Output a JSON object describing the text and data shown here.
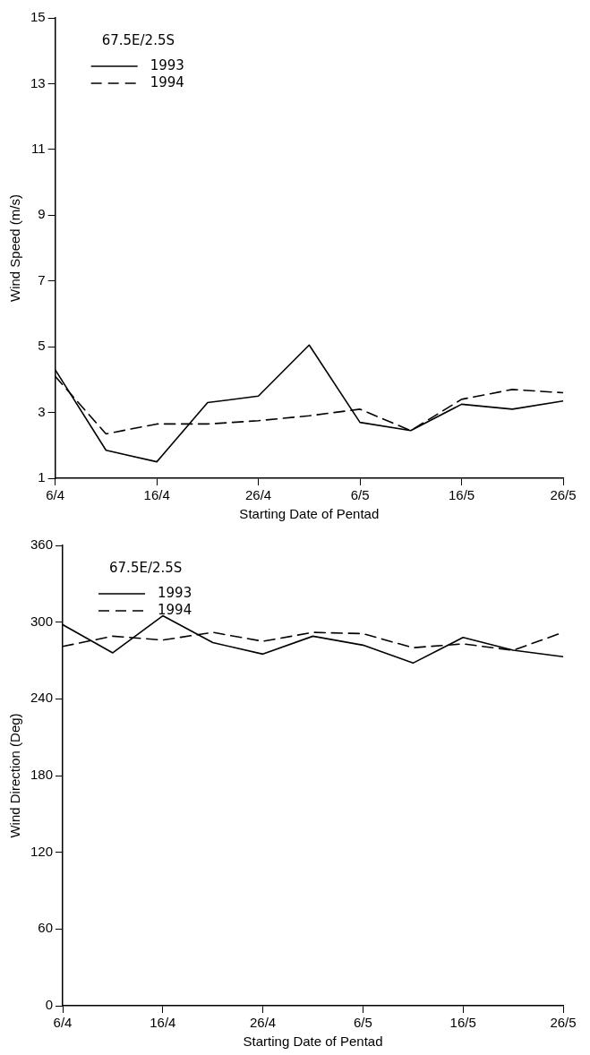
{
  "chart_data": [
    {
      "type": "line",
      "xlabel": "Starting Date of Pentad",
      "ylabel": "Wind Speed (m/s)",
      "legend_title": "67.5E/2.5S",
      "legend": "top left",
      "grid": false,
      "marker": "none",
      "x": [
        "--04-06",
        "--04-11",
        "--04-16",
        "--04-21",
        "--04-26",
        "--05-01",
        "--05-06",
        "--05-11",
        "--05-16",
        "--05-21",
        "--05-26"
      ],
      "xlim": [
        "--04-06",
        "--05-26"
      ],
      "xticks": [
        {
          "value": "--04-06",
          "label": "6/4"
        },
        {
          "value": "--04-16",
          "label": "16/4"
        },
        {
          "value": "--04-26",
          "label": "26/4"
        },
        {
          "value": "--05-06",
          "label": "6/5"
        },
        {
          "value": "--05-16",
          "label": "16/5"
        },
        {
          "value": "--05-26",
          "label": "26/5"
        }
      ],
      "ylim": [
        1,
        15
      ],
      "yticks": [
        1,
        3,
        5,
        7,
        9,
        11,
        13,
        15
      ],
      "series": [
        {
          "name": "1993",
          "color": "#000000",
          "line_style": "solid",
          "values": [
            4.3,
            1.85,
            1.5,
            3.3,
            3.5,
            5.05,
            2.7,
            2.45,
            3.25,
            3.1,
            3.35
          ]
        },
        {
          "name": "1994",
          "color": "#000000",
          "line_style": "dashed",
          "values": [
            4.1,
            2.35,
            2.65,
            2.65,
            2.75,
            2.9,
            3.1,
            2.45,
            3.4,
            3.7,
            3.6
          ]
        }
      ]
    },
    {
      "type": "line",
      "xlabel": "Starting Date of Pentad",
      "ylabel": "Wind Direction (Deg)",
      "legend_title": "67.5E/2.5S",
      "legend": "top left",
      "grid": false,
      "marker": "none",
      "x": [
        "--04-06",
        "--04-11",
        "--04-16",
        "--04-21",
        "--04-26",
        "--05-01",
        "--05-06",
        "--05-11",
        "--05-16",
        "--05-21",
        "--05-26"
      ],
      "xlim": [
        "--04-06",
        "--05-26"
      ],
      "xticks": [
        {
          "value": "--04-06",
          "label": "6/4"
        },
        {
          "value": "--04-16",
          "label": "16/4"
        },
        {
          "value": "--04-26",
          "label": "26/4"
        },
        {
          "value": "--05-06",
          "label": "6/5"
        },
        {
          "value": "--05-16",
          "label": "16/5"
        },
        {
          "value": "--05-26",
          "label": "26/5"
        }
      ],
      "ylim": [
        0,
        360
      ],
      "yticks": [
        0,
        60,
        120,
        180,
        240,
        300,
        360
      ],
      "series": [
        {
          "name": "1993",
          "color": "#000000",
          "line_style": "solid",
          "values": [
            298,
            276,
            305,
            284,
            275,
            289,
            282,
            268,
            288,
            278,
            273
          ]
        },
        {
          "name": "1994",
          "color": "#000000",
          "line_style": "dashed",
          "values": [
            281,
            289,
            286,
            292,
            285,
            292,
            291,
            280,
            283,
            278,
            292
          ]
        }
      ]
    }
  ]
}
